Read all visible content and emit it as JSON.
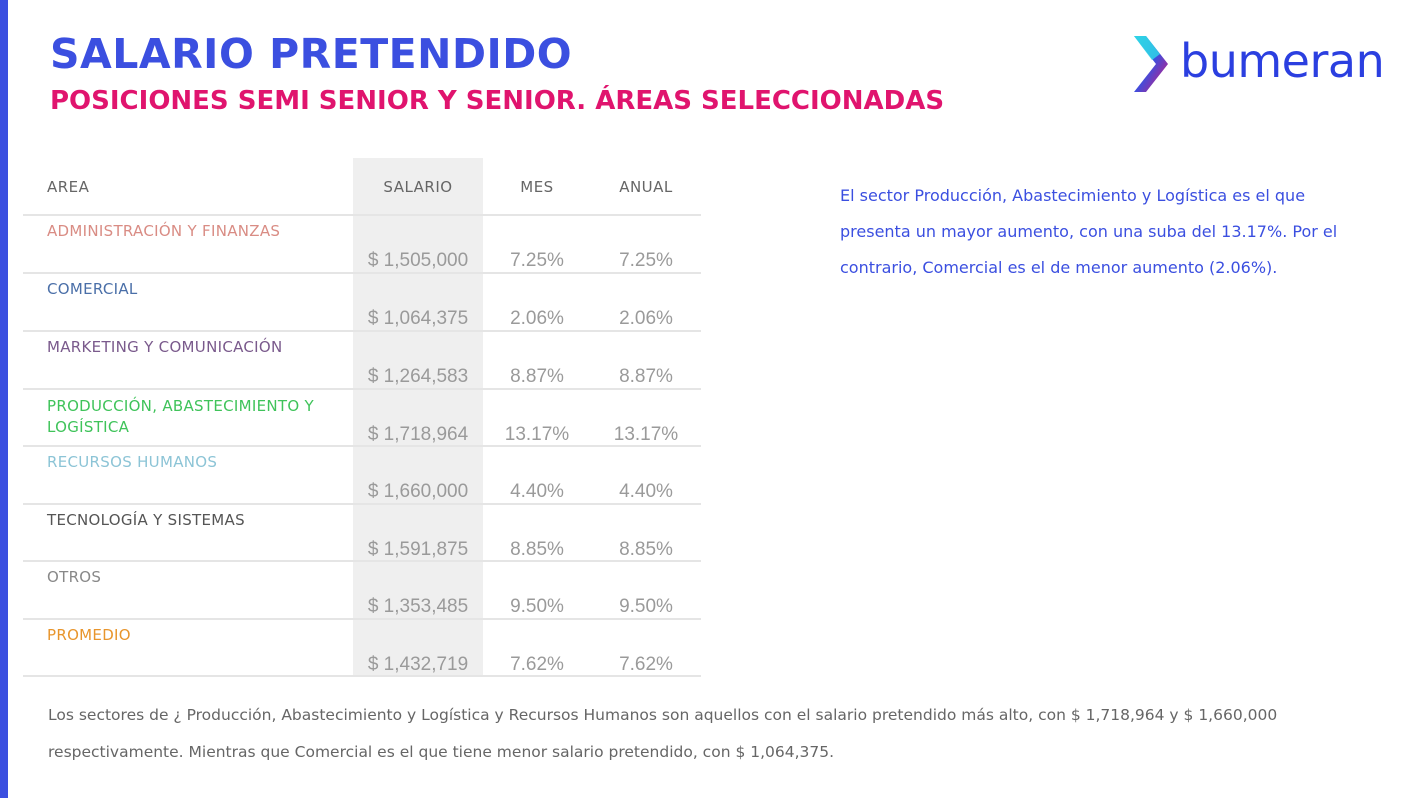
{
  "header": {
    "title": "SALARIO PRETENDIDO",
    "subtitle": "POSICIONES SEMI SENIOR Y SENIOR. ÁREAS SELECCIONADAS"
  },
  "logo": {
    "text": "bumeran",
    "icon": "bumeran-chevron-icon",
    "color": "#2b3fe0"
  },
  "table": {
    "columns": {
      "area": "AREA",
      "salario": "SALARIO",
      "mes": "MES",
      "anual": "ANUAL"
    },
    "rows": [
      {
        "area": "ADMINISTRACIÓN Y FINANZAS",
        "salario": "$ 1,505,000",
        "mes": "7.25%",
        "anual": "7.25%",
        "color": "#d98c84"
      },
      {
        "area": "COMERCIAL",
        "salario": "$ 1,064,375",
        "mes": "2.06%",
        "anual": "2.06%",
        "color": "#4a6fa8"
      },
      {
        "area": "MARKETING Y COMUNICACIÓN",
        "salario": "$ 1,264,583",
        "mes": "8.87%",
        "anual": "8.87%",
        "color": "#7a5a8c"
      },
      {
        "area": "PRODUCCIÓN, ABASTECIMIENTO Y LOGÍSTICA",
        "salario": "$ 1,718,964",
        "mes": "13.17%",
        "anual": "13.17%",
        "color": "#3fc35a"
      },
      {
        "area": "RECURSOS HUMANOS",
        "salario": "$ 1,660,000",
        "mes": "4.40%",
        "anual": "4.40%",
        "color": "#8cc4d6"
      },
      {
        "area": "TECNOLOGÍA Y SISTEMAS",
        "salario": "$ 1,591,875",
        "mes": "8.85%",
        "anual": "8.85%",
        "color": "#555555"
      },
      {
        "area": "OTROS",
        "salario": "$ 1,353,485",
        "mes": "9.50%",
        "anual": "9.50%",
        "color": "#888888"
      },
      {
        "area": "PROMEDIO",
        "salario": "$ 1,432,719",
        "mes": "7.62%",
        "anual": "7.62%",
        "color": "#e8952c"
      }
    ]
  },
  "comment": "El sector Producción, Abastecimiento y Logística  es el que presenta un mayor aumento, con una suba del 13.17%. Por el contrario, Comercial es el de menor aumento  (2.06%).",
  "footer": "Los sectores de ¿ Producción, Abastecimiento y Logística y Recursos Humanos son aquellos con el salario pretendido más alto, con $ 1,718,964 y $ 1,660,000 respectivamente. Mientras que Comercial es el que tiene menor salario pretendido, con $ 1,064,375.",
  "colors": {
    "accent_blue": "#3b4fe0",
    "accent_pink": "#e0146e"
  }
}
